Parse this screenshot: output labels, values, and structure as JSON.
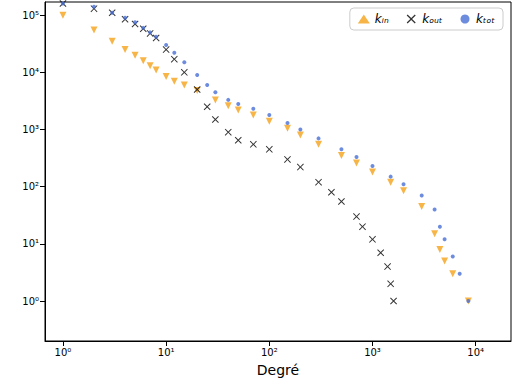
{
  "chart_data": {
    "type": "scatter",
    "x_label": "Degré",
    "log": true,
    "grid": false,
    "legend": "upper right",
    "xlim": [
      0.67,
      22000
    ],
    "ylim": [
      0.2,
      170000
    ],
    "xticks": [
      {
        "value": 1,
        "label": "10⁰"
      },
      {
        "value": 10,
        "label": "10¹"
      },
      {
        "value": 100,
        "label": "10²"
      },
      {
        "value": 1000,
        "label": "10³"
      },
      {
        "value": 10000,
        "label": "10⁴"
      }
    ],
    "yticks": [
      {
        "value": 1,
        "label": "10⁰"
      },
      {
        "value": 10,
        "label": "10¹"
      },
      {
        "value": 100,
        "label": "10²"
      },
      {
        "value": 1000,
        "label": "10³"
      },
      {
        "value": 10000,
        "label": "10⁴"
      },
      {
        "value": 100000,
        "label": "10⁵"
      }
    ],
    "series": [
      {
        "name": "kᵢₙ",
        "color": "#f5a31a",
        "marker": "triangle_down",
        "x": [
          1,
          2,
          3,
          4,
          5,
          6,
          7,
          8,
          10,
          12,
          15,
          20,
          30,
          40,
          50,
          70,
          100,
          150,
          200,
          300,
          500,
          700,
          1000,
          1500,
          2000,
          3000,
          4000,
          4500,
          5000,
          6000,
          8500
        ],
        "values": [
          100000,
          55000,
          35000,
          25000,
          20000,
          16000,
          13000,
          11000,
          8500,
          7000,
          6000,
          4800,
          3300,
          2600,
          2200,
          1800,
          1400,
          1050,
          800,
          550,
          350,
          260,
          180,
          120,
          85,
          45,
          15,
          8,
          5,
          3,
          1
        ]
      },
      {
        "name": "kₒᵤₜ",
        "color": "#000000",
        "marker": "x",
        "x": [
          1,
          2,
          3,
          4,
          5,
          6,
          7,
          8,
          10,
          12,
          15,
          20,
          25,
          30,
          40,
          50,
          70,
          100,
          150,
          200,
          300,
          400,
          500,
          700,
          800,
          1000,
          1200,
          1400,
          1500,
          1600
        ],
        "values": [
          160000,
          130000,
          110000,
          85000,
          70000,
          58000,
          48000,
          40000,
          25000,
          17000,
          10000,
          5000,
          2500,
          1500,
          900,
          650,
          550,
          450,
          300,
          220,
          120,
          80,
          55,
          30,
          20,
          12,
          7,
          4,
          2,
          1
        ]
      },
      {
        "name": "kₜₒₜ",
        "color": "#4a6fd6",
        "marker": "circle",
        "x": [
          1,
          2,
          3,
          4,
          5,
          6,
          7,
          8,
          10,
          12,
          15,
          20,
          25,
          30,
          40,
          50,
          70,
          100,
          150,
          200,
          300,
          500,
          700,
          1000,
          1500,
          2000,
          3000,
          4000,
          4500,
          5000,
          6000,
          7000,
          8500
        ],
        "values": [
          160000,
          140000,
          110000,
          90000,
          75000,
          60000,
          50000,
          42000,
          30000,
          22000,
          15000,
          9000,
          6000,
          4500,
          3300,
          2800,
          2300,
          1800,
          1300,
          1000,
          700,
          450,
          330,
          230,
          150,
          110,
          70,
          40,
          20,
          12,
          6,
          3,
          1
        ]
      }
    ]
  }
}
